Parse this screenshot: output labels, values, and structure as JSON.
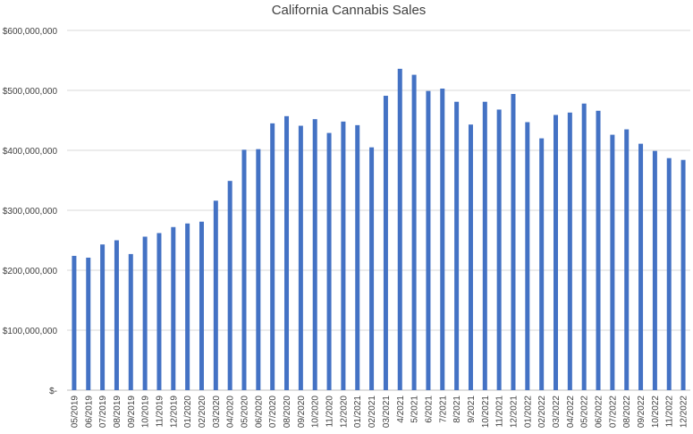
{
  "chart_data": {
    "type": "bar",
    "title": "California Cannabis Sales",
    "xlabel": "",
    "ylabel": "",
    "ylim": [
      0,
      600000000
    ],
    "y_ticks": [
      {
        "value": 0,
        "label": "$-"
      },
      {
        "value": 100000000,
        "label": "$100,000,000"
      },
      {
        "value": 200000000,
        "label": "$200,000,000"
      },
      {
        "value": 300000000,
        "label": "$300,000,000"
      },
      {
        "value": 400000000,
        "label": "$400,000,000"
      },
      {
        "value": 500000000,
        "label": "$500,000,000"
      },
      {
        "value": 600000000,
        "label": "$600,000,000"
      }
    ],
    "grid": true,
    "legend": "none",
    "bar_color": "#4472c4",
    "categories": [
      "05/2019",
      "06/2019",
      "07/2019",
      "08/2019",
      "09/2019",
      "10/2019",
      "11/2019",
      "12/2019",
      "01/2020",
      "02/2020",
      "03/2020",
      "04/2020",
      "05/2020",
      "06/2020",
      "07/2020",
      "08/2020",
      "09/2020",
      "10/2020",
      "11/2020",
      "12/2020",
      "01/2021",
      "02/2021",
      "03/2021",
      "4/2021",
      "5/2021",
      "6/2021",
      "7/2021",
      "8/2021",
      "9/2021",
      "10/2021",
      "11/2021",
      "12/2021",
      "01/2022",
      "02/2022",
      "03/2022",
      "04/2022",
      "05/2022",
      "06/2022",
      "07/2022",
      "08/2022",
      "09/2022",
      "10/2022",
      "11/2022",
      "12/2022"
    ],
    "values": [
      224000000,
      221000000,
      243000000,
      250000000,
      227000000,
      256000000,
      262000000,
      272000000,
      278000000,
      281000000,
      316000000,
      349000000,
      401000000,
      402000000,
      445000000,
      457000000,
      441000000,
      452000000,
      429000000,
      448000000,
      442000000,
      405000000,
      491000000,
      536000000,
      526000000,
      499000000,
      503000000,
      481000000,
      443000000,
      481000000,
      468000000,
      494000000,
      447000000,
      420000000,
      459000000,
      463000000,
      478000000,
      466000000,
      426000000,
      435000000,
      411000000,
      399000000,
      387000000,
      384000000
    ]
  }
}
